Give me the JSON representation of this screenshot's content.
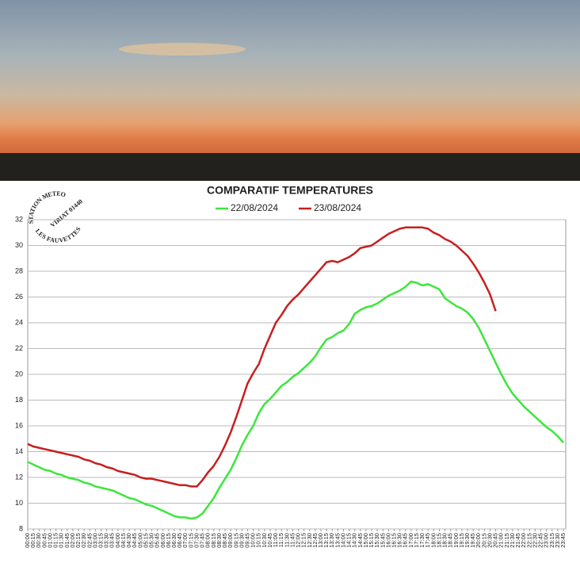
{
  "chart_data": {
    "type": "line",
    "title": "COMPARATIF TEMPERATURES",
    "stamp": [
      "STATION METEO",
      "VIRIAT 01440",
      "LES FAUVETTES"
    ],
    "categories": [
      "00:00",
      "00:15",
      "00:30",
      "00:45",
      "01:00",
      "01:15",
      "01:30",
      "01:45",
      "02:00",
      "02:15",
      "02:30",
      "02:45",
      "03:00",
      "03:15",
      "03:30",
      "03:45",
      "04:00",
      "04:15",
      "04:30",
      "04:45",
      "05:00",
      "05:15",
      "05:30",
      "05:45",
      "06:00",
      "06:15",
      "06:30",
      "06:45",
      "07:00",
      "07:15",
      "07:30",
      "07:45",
      "08:00",
      "08:15",
      "08:30",
      "08:45",
      "09:00",
      "09:15",
      "09:30",
      "09:45",
      "10:00",
      "10:15",
      "10:30",
      "10:45",
      "11:00",
      "11:15",
      "11:30",
      "11:45",
      "12:00",
      "12:15",
      "12:30",
      "12:45",
      "13:00",
      "13:15",
      "13:30",
      "13:45",
      "14:00",
      "14:15",
      "14:30",
      "14:45",
      "15:00",
      "15:15",
      "15:30",
      "15:45",
      "16:00",
      "16:15",
      "16:30",
      "16:45",
      "17:00",
      "17:15",
      "17:30",
      "17:45",
      "18:00",
      "18:15",
      "18:30",
      "18:45",
      "19:00",
      "19:15",
      "19:30",
      "19:45",
      "20:00",
      "20:15",
      "20:30",
      "20:45",
      "21:00",
      "21:15",
      "21:30",
      "21:45",
      "22:00",
      "22:15",
      "22:30",
      "22:45",
      "23:00",
      "23:15",
      "23:30",
      "23:45"
    ],
    "series": [
      {
        "name": "22/08/2024",
        "color": "#3ce63c",
        "values": [
          13.2,
          13.0,
          12.8,
          12.6,
          12.5,
          12.3,
          12.2,
          12.0,
          11.9,
          11.8,
          11.6,
          11.5,
          11.3,
          11.2,
          11.1,
          11.0,
          10.8,
          10.6,
          10.4,
          10.3,
          10.1,
          9.9,
          9.8,
          9.6,
          9.4,
          9.2,
          9.0,
          8.9,
          8.9,
          8.8,
          8.9,
          9.2,
          9.8,
          10.4,
          11.2,
          11.9,
          12.6,
          13.5,
          14.5,
          15.3,
          16.0,
          17.0,
          17.7,
          18.1,
          18.6,
          19.1,
          19.4,
          19.8,
          20.1,
          20.5,
          20.9,
          21.4,
          22.1,
          22.7,
          22.9,
          23.2,
          23.4,
          23.9,
          24.7,
          25.0,
          25.2,
          25.3,
          25.5,
          25.8,
          26.1,
          26.3,
          26.5,
          26.8,
          27.2,
          27.1,
          26.9,
          27.0,
          26.8,
          26.6,
          25.9,
          25.6,
          25.3,
          25.1,
          24.8,
          24.3,
          23.6,
          22.7,
          21.8,
          20.9,
          20.0,
          19.2,
          18.5,
          18.0,
          17.5,
          17.1,
          16.7,
          16.3,
          15.9,
          15.6,
          15.2,
          14.7
        ]
      },
      {
        "name": "23/08/2024",
        "color": "#c81e1e",
        "values": [
          14.6,
          14.4,
          14.3,
          14.2,
          14.1,
          14.0,
          13.9,
          13.8,
          13.7,
          13.6,
          13.4,
          13.3,
          13.1,
          13.0,
          12.8,
          12.7,
          12.5,
          12.4,
          12.3,
          12.2,
          12.0,
          11.9,
          11.9,
          11.8,
          11.7,
          11.6,
          11.5,
          11.4,
          11.4,
          11.3,
          11.3,
          11.8,
          12.4,
          12.9,
          13.6,
          14.5,
          15.5,
          16.7,
          18.0,
          19.3,
          20.1,
          20.8,
          22.0,
          23.0,
          24.0,
          24.6,
          25.3,
          25.8,
          26.2,
          26.7,
          27.2,
          27.7,
          28.2,
          28.7,
          28.8,
          28.7,
          28.9,
          29.1,
          29.4,
          29.8,
          29.9,
          30.0,
          30.3,
          30.6,
          30.9,
          31.1,
          31.3,
          31.4,
          31.4,
          31.4,
          31.4,
          31.3,
          31.0,
          30.8,
          30.5,
          30.3,
          30.0,
          29.6,
          29.2,
          28.6,
          27.9,
          27.1,
          26.2,
          24.9,
          null,
          null,
          null,
          null,
          null,
          null,
          null,
          null,
          null,
          null,
          null,
          null
        ]
      }
    ],
    "ylim": [
      8,
      32
    ],
    "yticks": [
      8,
      10,
      12,
      14,
      16,
      18,
      20,
      22,
      24,
      26,
      28,
      30,
      32
    ],
    "grid": true
  }
}
